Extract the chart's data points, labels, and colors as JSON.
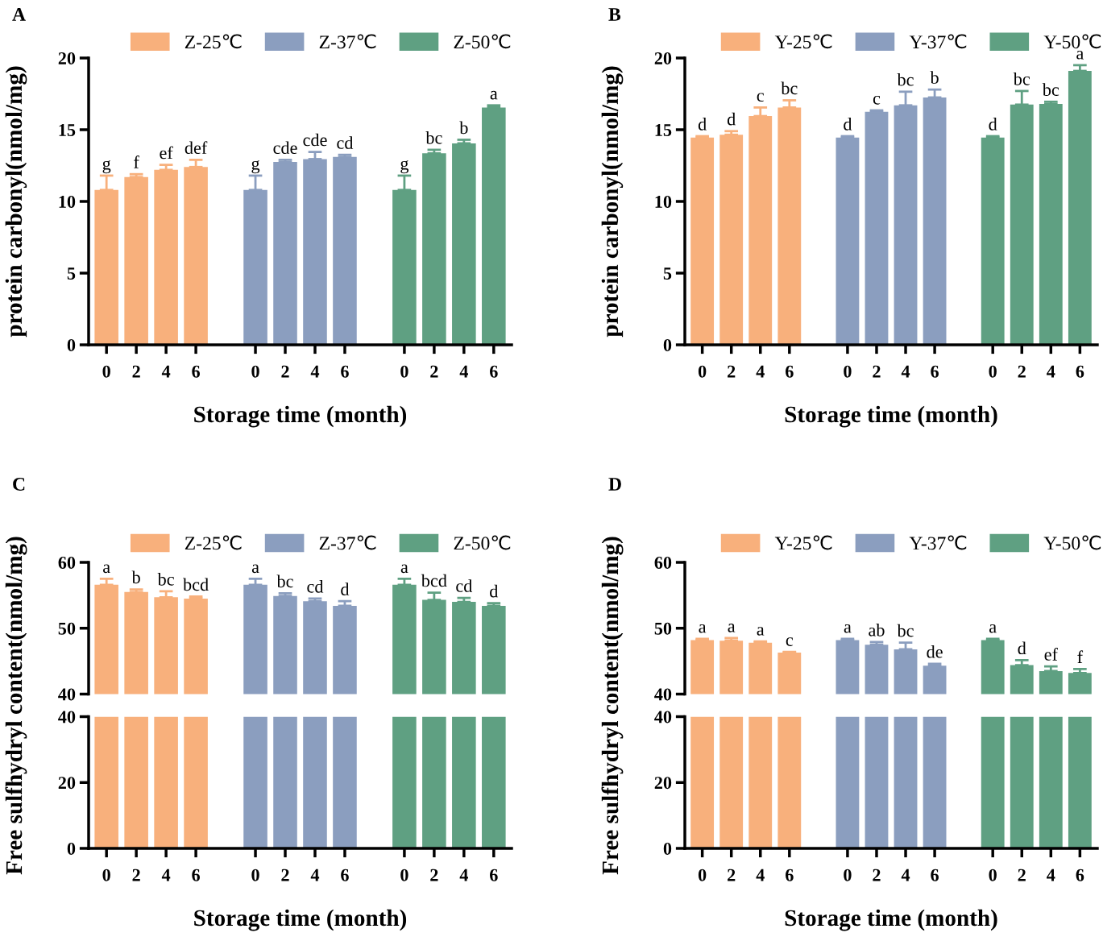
{
  "chart_data": [
    {
      "type": "bar",
      "title": "A",
      "xlabel": "Storage time (month)",
      "ylabel": "protein carbonyl(nmol/mg)",
      "categories": [
        "0",
        "2",
        "4",
        "6",
        null,
        "0",
        "2",
        "4",
        "6",
        null,
        "0",
        "2",
        "4",
        "6"
      ],
      "ylim": [
        0,
        20
      ],
      "yticks": [
        0,
        5,
        10,
        15,
        20
      ],
      "legend": "top",
      "series": [
        {
          "name": "Z-25℃",
          "color": "#f8b07c",
          "values": [
            10.8,
            11.7,
            12.2,
            12.4,
            null,
            null,
            null,
            null,
            null,
            null,
            null,
            null,
            null,
            null
          ],
          "errors": [
            [
              10.8,
              11.8
            ],
            [
              11.7,
              11.9
            ],
            [
              12.2,
              12.55
            ],
            [
              12.4,
              12.9
            ],
            null,
            null,
            null,
            null,
            null,
            null,
            null,
            null,
            null,
            null
          ],
          "value_labels": [
            "g",
            "f",
            "ef",
            "def",
            null,
            null,
            null,
            null,
            null,
            null,
            null,
            null,
            null,
            null
          ]
        },
        {
          "name": "Z-37℃",
          "color": "#8b9ebf",
          "values": [
            null,
            null,
            null,
            null,
            null,
            10.8,
            12.75,
            12.95,
            13.1,
            null,
            null,
            null,
            null,
            null
          ],
          "errors": [
            null,
            null,
            null,
            null,
            null,
            [
              10.8,
              11.8
            ],
            [
              12.75,
              12.9
            ],
            [
              12.95,
              13.45
            ],
            [
              13.1,
              13.25
            ],
            null,
            null,
            null,
            null,
            null
          ],
          "value_labels": [
            null,
            null,
            null,
            null,
            null,
            "g",
            "cde",
            "cde",
            "cd",
            null,
            null,
            null,
            null,
            null
          ]
        },
        {
          "name": "Z-50℃",
          "color": "#5fa082",
          "values": [
            null,
            null,
            null,
            null,
            null,
            null,
            null,
            null,
            null,
            null,
            10.8,
            13.35,
            14.05,
            16.55
          ],
          "errors": [
            null,
            null,
            null,
            null,
            null,
            null,
            null,
            null,
            null,
            null,
            [
              10.8,
              11.8
            ],
            [
              13.35,
              13.6
            ],
            [
              14.05,
              14.3
            ],
            [
              16.55,
              16.7
            ]
          ],
          "value_labels": [
            null,
            null,
            null,
            null,
            null,
            null,
            null,
            null,
            null,
            null,
            "g",
            "bc",
            "b",
            "a"
          ]
        }
      ]
    },
    {
      "type": "bar",
      "title": "B",
      "xlabel": "Storage time (month)",
      "ylabel": "protein carbonyl(nmol/mg)",
      "categories": [
        "0",
        "2",
        "4",
        "6",
        null,
        "0",
        "2",
        "4",
        "6",
        null,
        "0",
        "2",
        "4",
        "6"
      ],
      "ylim": [
        0,
        20
      ],
      "yticks": [
        0,
        5,
        10,
        15,
        20
      ],
      "legend": "top",
      "series": [
        {
          "name": "Y-25℃",
          "color": "#f8b07c",
          "values": [
            14.45,
            14.65,
            15.95,
            16.55,
            null,
            null,
            null,
            null,
            null,
            null,
            null,
            null,
            null,
            null
          ],
          "errors": [
            [
              14.45,
              14.55
            ],
            [
              14.65,
              14.9
            ],
            [
              15.95,
              16.55
            ],
            [
              16.55,
              17.05
            ],
            null,
            null,
            null,
            null,
            null,
            null,
            null,
            null,
            null,
            null
          ],
          "value_labels": [
            "d",
            "d",
            "c",
            "bc",
            null,
            null,
            null,
            null,
            null,
            null,
            null,
            null,
            null,
            null
          ]
        },
        {
          "name": "Y-37℃",
          "color": "#8b9ebf",
          "values": [
            null,
            null,
            null,
            null,
            null,
            14.45,
            16.25,
            16.7,
            17.25,
            null,
            null,
            null,
            null,
            null
          ],
          "errors": [
            null,
            null,
            null,
            null,
            null,
            [
              14.45,
              14.55
            ],
            [
              16.25,
              16.35
            ],
            [
              16.7,
              17.65
            ],
            [
              17.25,
              17.8
            ],
            null,
            null,
            null,
            null,
            null
          ],
          "value_labels": [
            null,
            null,
            null,
            null,
            null,
            "d",
            "c",
            "bc",
            "b",
            null,
            null,
            null,
            null,
            null
          ]
        },
        {
          "name": "Y-50℃",
          "color": "#5fa082",
          "values": [
            null,
            null,
            null,
            null,
            null,
            null,
            null,
            null,
            null,
            null,
            14.45,
            16.75,
            16.8,
            19.1
          ],
          "errors": [
            null,
            null,
            null,
            null,
            null,
            null,
            null,
            null,
            null,
            null,
            [
              14.45,
              14.55
            ],
            [
              16.75,
              17.7
            ],
            [
              16.8,
              16.95
            ],
            [
              19.1,
              19.5
            ]
          ],
          "value_labels": [
            null,
            null,
            null,
            null,
            null,
            null,
            null,
            null,
            null,
            null,
            "d",
            "bc",
            "bc",
            "a"
          ]
        }
      ]
    },
    {
      "type": "bar",
      "title": "C",
      "ylabel": "Free sulfhydryl content(nmol/mg)",
      "categories": [
        "0",
        "2",
        "4",
        "6",
        null,
        "0",
        "2",
        "4",
        "6",
        null,
        "0",
        "2",
        "4",
        "6"
      ],
      "ylim": [
        40,
        60
      ],
      "yticks": [
        40,
        50,
        60
      ],
      "legend": "top",
      "tick_labels": "y",
      "series": [
        {
          "name": "Z-25℃",
          "color": "#f8b07c",
          "values": [
            56.6,
            55.5,
            54.7,
            54.5,
            null,
            null,
            null,
            null,
            null,
            null,
            null,
            null,
            null,
            null
          ],
          "errors": [
            [
              56.6,
              57.5
            ],
            [
              55.5,
              55.9
            ],
            [
              54.7,
              55.6
            ],
            [
              54.5,
              54.8
            ],
            null,
            null,
            null,
            null,
            null,
            null,
            null,
            null,
            null,
            null
          ],
          "value_labels": [
            "a",
            "b",
            "bc",
            "bcd",
            null,
            null,
            null,
            null,
            null,
            null,
            null,
            null,
            null,
            null
          ]
        },
        {
          "name": "Z-37℃",
          "color": "#8b9ebf",
          "values": [
            null,
            null,
            null,
            null,
            null,
            56.6,
            54.9,
            54.1,
            53.4,
            null,
            null,
            null,
            null,
            null
          ],
          "errors": [
            null,
            null,
            null,
            null,
            null,
            [
              56.6,
              57.5
            ],
            [
              54.9,
              55.3
            ],
            [
              54.1,
              54.5
            ],
            [
              53.4,
              54.1
            ],
            null,
            null,
            null,
            null,
            null
          ],
          "value_labels": [
            null,
            null,
            null,
            null,
            null,
            "a",
            "bc",
            "cd",
            "d",
            null,
            null,
            null,
            null,
            null
          ]
        },
        {
          "name": "Z-50℃",
          "color": "#5fa082",
          "values": [
            null,
            null,
            null,
            null,
            null,
            null,
            null,
            null,
            null,
            null,
            56.6,
            54.3,
            54.0,
            53.4
          ],
          "errors": [
            null,
            null,
            null,
            null,
            null,
            null,
            null,
            null,
            null,
            null,
            [
              56.6,
              57.5
            ],
            [
              54.3,
              55.4
            ],
            [
              54.0,
              54.6
            ],
            [
              53.4,
              53.8
            ]
          ],
          "value_labels": [
            null,
            null,
            null,
            null,
            null,
            null,
            null,
            null,
            null,
            null,
            "a",
            "bcd",
            "cd",
            "d"
          ]
        }
      ]
    },
    {
      "type": "bar",
      "xlabel": "Storage time (month)",
      "categories": [
        "0",
        "2",
        "4",
        "6",
        null,
        "0",
        "2",
        "4",
        "6",
        null,
        "0",
        "2",
        "4",
        "6"
      ],
      "ylim": [
        0,
        40
      ],
      "yticks": [
        0,
        20,
        40
      ],
      "series": [
        {
          "color": "#f8b07c",
          "values": [
            40,
            40,
            40,
            40,
            null,
            null,
            null,
            null,
            null,
            null,
            null,
            null,
            null,
            null
          ]
        },
        {
          "color": "#8b9ebf",
          "values": [
            null,
            null,
            null,
            null,
            null,
            40,
            40,
            40,
            40,
            null,
            null,
            null,
            null,
            null
          ]
        },
        {
          "color": "#5fa082",
          "values": [
            null,
            null,
            null,
            null,
            null,
            null,
            null,
            null,
            null,
            null,
            40,
            40,
            40,
            40
          ]
        }
      ]
    },
    {
      "type": "bar",
      "title": "D",
      "ylabel": "Free sulfhydryl content(nmol/mg)",
      "categories": [
        "0",
        "2",
        "4",
        "6",
        null,
        "0",
        "2",
        "4",
        "6",
        null,
        "0",
        "2",
        "4",
        "6"
      ],
      "ylim": [
        40,
        60
      ],
      "yticks": [
        40,
        50,
        60
      ],
      "legend": "top",
      "tick_labels": "y",
      "series": [
        {
          "name": "Y-25℃",
          "color": "#f8b07c",
          "values": [
            48.2,
            48.1,
            47.8,
            46.3,
            null,
            null,
            null,
            null,
            null,
            null,
            null,
            null,
            null,
            null
          ],
          "errors": [
            [
              48.2,
              48.4
            ],
            [
              48.1,
              48.5
            ],
            [
              47.8,
              48.0
            ],
            [
              46.3,
              46.4
            ],
            null,
            null,
            null,
            null,
            null,
            null,
            null,
            null,
            null,
            null
          ],
          "value_labels": [
            "a",
            "a",
            "a",
            "c",
            null,
            null,
            null,
            null,
            null,
            null,
            null,
            null,
            null,
            null
          ]
        },
        {
          "name": "Y-37℃",
          "color": "#8b9ebf",
          "values": [
            null,
            null,
            null,
            null,
            null,
            48.2,
            47.5,
            46.8,
            44.3,
            null,
            null,
            null,
            null,
            null
          ],
          "errors": [
            null,
            null,
            null,
            null,
            null,
            [
              48.2,
              48.4
            ],
            [
              47.5,
              47.9
            ],
            [
              46.8,
              47.8
            ],
            [
              44.3,
              44.6
            ],
            null,
            null,
            null,
            null,
            null
          ],
          "value_labels": [
            null,
            null,
            null,
            null,
            null,
            "a",
            "ab",
            "bc",
            "de",
            null,
            null,
            null,
            null,
            null
          ]
        },
        {
          "name": "Y-50℃",
          "color": "#5fa082",
          "values": [
            null,
            null,
            null,
            null,
            null,
            null,
            null,
            null,
            null,
            null,
            48.2,
            44.4,
            43.5,
            43.2
          ],
          "errors": [
            null,
            null,
            null,
            null,
            null,
            null,
            null,
            null,
            null,
            null,
            [
              48.2,
              48.4
            ],
            [
              44.4,
              45.15
            ],
            [
              43.5,
              44.2
            ],
            [
              43.2,
              43.8
            ]
          ],
          "value_labels": [
            null,
            null,
            null,
            null,
            null,
            null,
            null,
            null,
            null,
            null,
            "a",
            "d",
            "ef",
            "f"
          ]
        }
      ]
    },
    {
      "type": "bar",
      "xlabel": "Storage time (month)",
      "categories": [
        "0",
        "2",
        "4",
        "6",
        null,
        "0",
        "2",
        "4",
        "6",
        null,
        "0",
        "2",
        "4",
        "6"
      ],
      "ylim": [
        0,
        40
      ],
      "yticks": [
        0,
        20,
        40
      ],
      "series": [
        {
          "color": "#f8b07c",
          "values": [
            40,
            40,
            40,
            40,
            null,
            null,
            null,
            null,
            null,
            null,
            null,
            null,
            null,
            null
          ]
        },
        {
          "color": "#8b9ebf",
          "values": [
            null,
            null,
            null,
            null,
            null,
            40,
            40,
            40,
            40,
            null,
            null,
            null,
            null,
            null
          ]
        },
        {
          "color": "#5fa082",
          "values": [
            null,
            null,
            null,
            null,
            null,
            null,
            null,
            null,
            null,
            null,
            40,
            40,
            40,
            40
          ]
        }
      ]
    }
  ]
}
